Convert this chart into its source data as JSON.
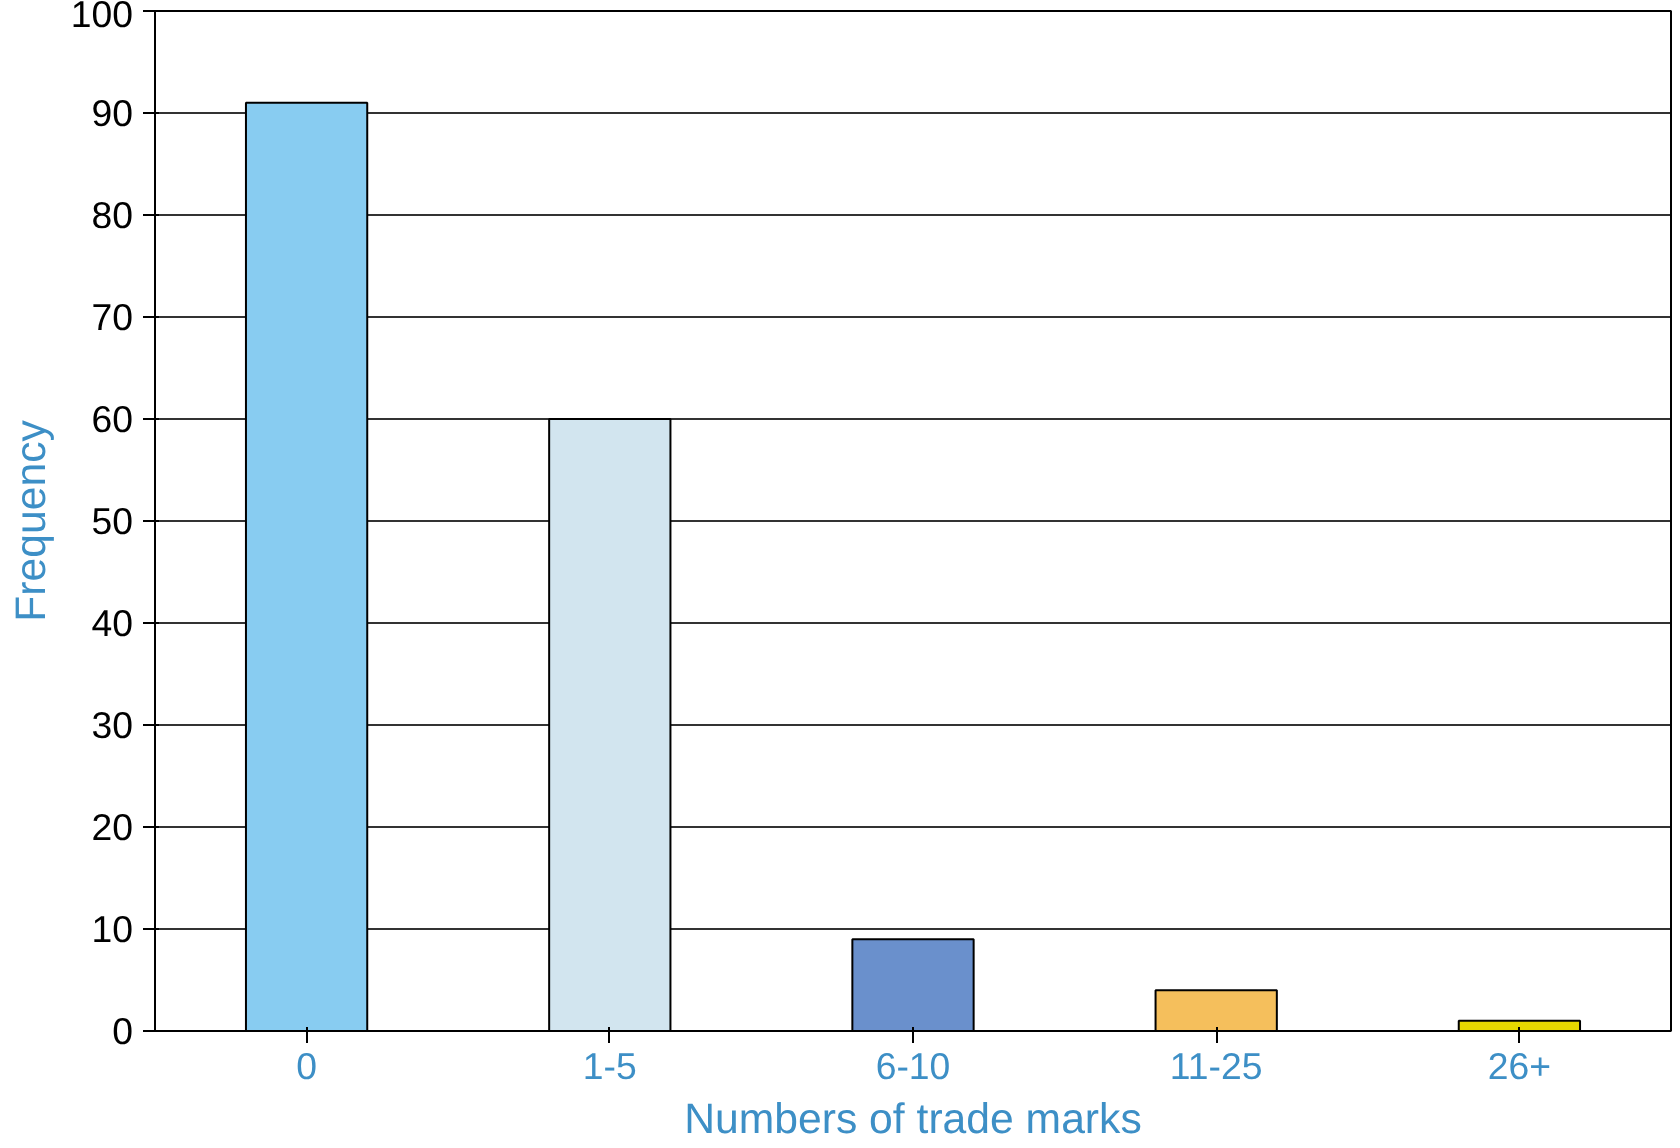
{
  "chart_data": {
    "type": "bar",
    "xlabel": "Numbers of trade marks",
    "ylabel": "Frequency",
    "categories": [
      "0",
      "1-5",
      "6-10",
      "11-25",
      "26+"
    ],
    "values": [
      91,
      60,
      9,
      4,
      1
    ],
    "colors": [
      "#88ccf1",
      "#d2e5ef",
      "#6a90cc",
      "#f5bf5c",
      "#e6d800"
    ],
    "ylim": [
      0,
      100
    ],
    "yticks": [
      0,
      10,
      20,
      30,
      40,
      50,
      60,
      70,
      80,
      90,
      100
    ],
    "grid": "y"
  }
}
